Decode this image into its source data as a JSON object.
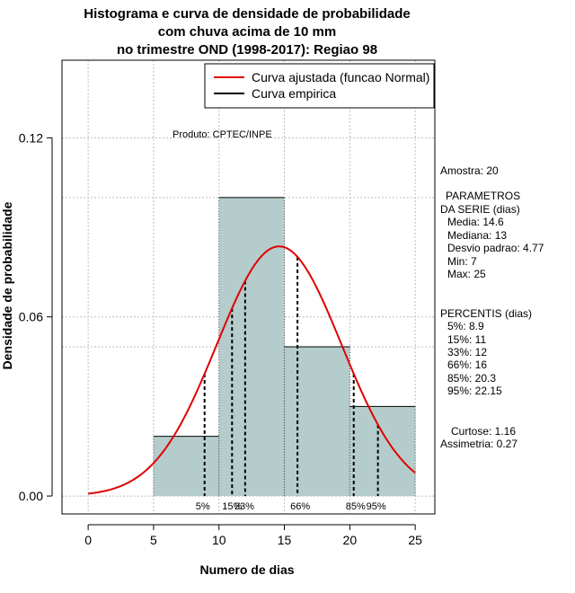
{
  "chart_data": {
    "type": "bar",
    "title_lines": [
      "Histograma e curva de densidade de probabilidade",
      "com chuva acima de 10 mm",
      "no trimestre OND (1998-2017): Regiao 98"
    ],
    "xlabel": "Numero de dias",
    "ylabel": "Densidade de probabilidade",
    "xlim": [
      -2,
      26.5
    ],
    "ylim": [
      -0.006,
      0.146
    ],
    "x_ticks": [
      0,
      5,
      10,
      15,
      20,
      25
    ],
    "x_tick_labels": [
      "0",
      "5",
      "10",
      "15",
      "20",
      "25"
    ],
    "y_ticks": [
      0.0,
      0.06,
      0.12
    ],
    "y_tick_labels": [
      "0.00",
      "0.06",
      "0.12"
    ],
    "grid": true,
    "grid_x": [
      0,
      5,
      10,
      15,
      20,
      25
    ],
    "grid_y": [
      0.0,
      0.05,
      0.06,
      0.1,
      0.12
    ],
    "bins": [
      {
        "start": 5,
        "end": 10,
        "density": 0.02
      },
      {
        "start": 10,
        "end": 15,
        "density": 0.1
      },
      {
        "start": 15,
        "end": 20,
        "density": 0.05
      },
      {
        "start": 20,
        "end": 25,
        "density": 0.03
      }
    ],
    "bar_color": "#b5cccc",
    "normal_curve": {
      "mean": 14.6,
      "sd": 4.77,
      "x_range": [
        0,
        25
      ],
      "color": "#e00000"
    },
    "percentile_lines": [
      {
        "label": "5%",
        "x": 8.9
      },
      {
        "label": "15%",
        "x": 11
      },
      {
        "label": "33%",
        "x": 12
      },
      {
        "label": "66%",
        "x": 16
      },
      {
        "label": "85%",
        "x": 20.3
      },
      {
        "label": "95%",
        "x": 22.15
      }
    ],
    "legend": {
      "position": "top-right",
      "entries": [
        {
          "label": "Curva ajustada (funcao Normal)",
          "color": "#e00000"
        },
        {
          "label": "Curva empirica",
          "color": "#000000"
        }
      ]
    },
    "annotation": "Produto: CPTEC/INPE",
    "side_panel": [
      "Amostra: 20",
      "PARAMETROS",
      "DA SERIE (dias)",
      "Media: 14.6",
      "Mediana: 13",
      "Desvio padrao: 4.77",
      "Min: 7",
      "Max: 25",
      "PERCENTIS (dias)",
      "5%: 8.9",
      "15%: 11",
      "33%: 12",
      "66%: 16",
      "85%: 20.3",
      "95%: 22.15",
      "Curtose: 1.16",
      "Assimetria: 0.27"
    ]
  }
}
